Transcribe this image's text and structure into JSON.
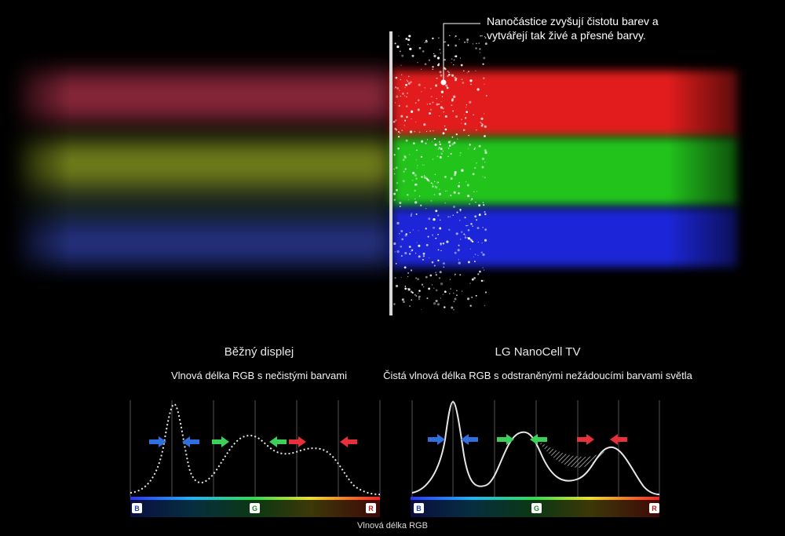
{
  "callout": {
    "line1": "Nanočástice zvyšují čistotu barev a",
    "line2": "vytvářejí tak živé a přesné barvy."
  },
  "left_panel": {
    "title": "Běžný displej",
    "subtitle": "Vlnová délka RGB s nečistými barvami"
  },
  "right_panel": {
    "title": "LG NanoCell TV",
    "subtitle": "Čistá vlnová délka RGB s odstraněnými nežádoucími barvami světla"
  },
  "axis": {
    "b_label": "B",
    "g_label": "G",
    "r_label": "R",
    "bottom_label": "Vlnová délka RGB"
  },
  "colors": {
    "red": "#e8303a",
    "green": "#3ccf5a",
    "blue": "#2f6fe0",
    "curve": "#e6e6e6"
  },
  "icons": {
    "arrow": "arrow-icon"
  }
}
